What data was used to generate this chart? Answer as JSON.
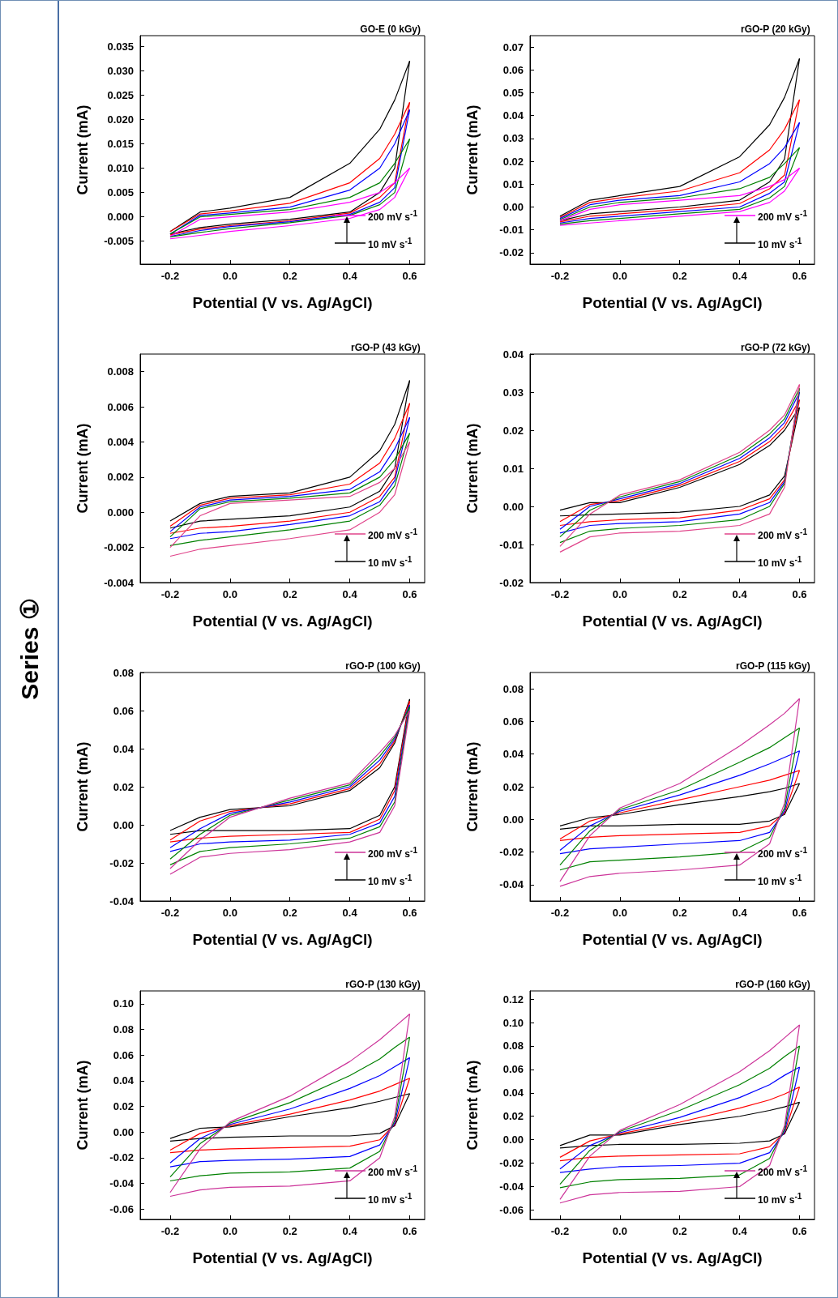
{
  "chart_data": [
    {
      "type": "line",
      "title": "GO-E (0 kGy)",
      "xlabel": "Potential (V vs. Ag/AgCl)",
      "ylabel": "Current (mA)",
      "annotations": [
        "200 mV s$^{-1}$",
        "10 mV s$^{-1}$",
        "Series ①"
      ],
      "marker": "none",
      "line_style": "solid",
      "xlim": [
        -0.3,
        0.65
      ],
      "xticks": [
        {
          "value": -0.2,
          "label": "-0.2"
        },
        {
          "value": 0,
          "label": "0.0"
        },
        {
          "value": 0.2,
          "label": "0.2"
        },
        {
          "value": 0.4,
          "label": "0.4"
        },
        {
          "value": 0.6,
          "label": "0.6"
        }
      ],
      "ylim": [
        -0.0097,
        0.0372
      ],
      "yticks": [
        {
          "value": -0.005,
          "label": "-0.005"
        },
        {
          "value": 0,
          "label": "0.000"
        },
        {
          "value": 0.005,
          "label": "0.005"
        },
        {
          "value": 0.01,
          "label": "0.010"
        },
        {
          "value": 0.015,
          "label": "0.015"
        },
        {
          "value": 0.02,
          "label": "0.020"
        },
        {
          "value": 0.025,
          "label": "0.025"
        },
        {
          "value": 0.03,
          "label": "0.030"
        },
        {
          "value": 0.035,
          "label": "0.035"
        }
      ],
      "x": [
        -0.2,
        -0.1,
        0,
        0.2,
        0.4,
        0.5,
        0.55,
        0.6
      ],
      "series": [
        {
          "color": "#000000",
          "values": [
            -0.003,
            0.001,
            0.0018,
            0.004,
            0.011,
            0.018,
            0.024,
            0.032
          ]
        },
        {
          "color": "#000000",
          "values": [
            -0.0035,
            -0.0022,
            -0.0015,
            -0.0005,
            0.001,
            0.005,
            0.01,
            0.032
          ]
        },
        {
          "color": "#ff0000",
          "values": [
            -0.003,
            0.0006,
            0.0012,
            0.0028,
            0.007,
            0.012,
            0.017,
            0.0235
          ]
        },
        {
          "color": "#ff0000",
          "values": [
            -0.0037,
            -0.0025,
            -0.0018,
            -0.0008,
            0.0008,
            0.004,
            0.007,
            0.0235
          ]
        },
        {
          "color": "#0000ff",
          "values": [
            -0.0035,
            0.0003,
            0.0008,
            0.002,
            0.0055,
            0.01,
            0.015,
            0.022
          ]
        },
        {
          "color": "#0000ff",
          "values": [
            -0.004,
            -0.0028,
            -0.002,
            -0.001,
            0.0005,
            0.003,
            0.006,
            0.022
          ]
        },
        {
          "color": "#008000",
          "values": [
            -0.0035,
            0,
            0.0005,
            0.0015,
            0.004,
            0.007,
            0.011,
            0.016
          ]
        },
        {
          "color": "#008000",
          "values": [
            -0.0041,
            -0.0032,
            -0.0024,
            -0.0012,
            0.0003,
            0.0025,
            0.005,
            0.016
          ]
        },
        {
          "color": "#ff00ff",
          "values": [
            -0.004,
            -0.0005,
            0,
            0.001,
            0.003,
            0.005,
            0.007,
            0.01
          ]
        },
        {
          "color": "#ff00ff",
          "values": [
            -0.0045,
            -0.0038,
            -0.003,
            -0.0018,
            -0.0003,
            0.0015,
            0.004,
            0.01
          ]
        }
      ]
    },
    {
      "type": "line",
      "title": "rGO-P (20 kGy)",
      "xlabel": "Potential (V vs. Ag/AgCl)",
      "ylabel": "Current (mA)",
      "annotations": [
        "200 mV s$^{-1}$",
        "10 mV s$^{-1}$"
      ],
      "marker": "none",
      "line_style": "solid",
      "xlim": [
        -0.3,
        0.65
      ],
      "xticks": [
        {
          "value": -0.2,
          "label": "-0.2"
        },
        {
          "value": 0,
          "label": "0.0"
        },
        {
          "value": 0.2,
          "label": "0.2"
        },
        {
          "value": 0.4,
          "label": "0.4"
        },
        {
          "value": 0.6,
          "label": "0.6"
        }
      ],
      "ylim": [
        -0.025,
        0.075
      ],
      "yticks": [
        {
          "value": -0.02,
          "label": "-0.02"
        },
        {
          "value": -0.01,
          "label": "-0.01"
        },
        {
          "value": 0,
          "label": "0.00"
        },
        {
          "value": 0.01,
          "label": "0.01"
        },
        {
          "value": 0.02,
          "label": "0.02"
        },
        {
          "value": 0.03,
          "label": "0.03"
        },
        {
          "value": 0.04,
          "label": "0.04"
        },
        {
          "value": 0.05,
          "label": "0.05"
        },
        {
          "value": 0.06,
          "label": "0.06"
        },
        {
          "value": 0.07,
          "label": "0.07"
        }
      ],
      "x": [
        -0.2,
        -0.1,
        0,
        0.2,
        0.4,
        0.5,
        0.55,
        0.6
      ],
      "series": [
        {
          "color": "#000000",
          "values": [
            -0.004,
            0.003,
            0.005,
            0.009,
            0.022,
            0.036,
            0.048,
            0.065
          ]
        },
        {
          "color": "#000000",
          "values": [
            -0.006,
            -0.003,
            -0.002,
            0,
            0.003,
            0.011,
            0.021,
            0.065
          ]
        },
        {
          "color": "#ff0000",
          "values": [
            -0.0045,
            0.002,
            0.004,
            0.007,
            0.015,
            0.025,
            0.034,
            0.047
          ]
        },
        {
          "color": "#ff0000",
          "values": [
            -0.0065,
            -0.004,
            -0.003,
            -0.001,
            0.0015,
            0.008,
            0.014,
            0.047
          ]
        },
        {
          "color": "#0000ff",
          "values": [
            -0.005,
            0.001,
            0.003,
            0.005,
            0.011,
            0.019,
            0.026,
            0.037
          ]
        },
        {
          "color": "#0000ff",
          "values": [
            -0.007,
            -0.005,
            -0.004,
            -0.002,
            0,
            0.006,
            0.011,
            0.037
          ]
        },
        {
          "color": "#008000",
          "values": [
            -0.0055,
            0,
            0.002,
            0.004,
            0.008,
            0.013,
            0.019,
            0.026
          ]
        },
        {
          "color": "#008000",
          "values": [
            -0.0075,
            -0.006,
            -0.005,
            -0.003,
            -0.001,
            0.004,
            0.009,
            0.026
          ]
        },
        {
          "color": "#ff00ff",
          "values": [
            -0.006,
            -0.001,
            0.001,
            0.003,
            0.005,
            0.009,
            0.012,
            0.017
          ]
        },
        {
          "color": "#ff00ff",
          "values": [
            -0.008,
            -0.007,
            -0.006,
            -0.004,
            -0.002,
            0.002,
            0.007,
            0.017
          ]
        }
      ]
    },
    {
      "type": "line",
      "title": "rGO-P (43 kGy)",
      "xlabel": "Potential (V vs. Ag/AgCl)",
      "ylabel": "Current (mA)",
      "annotations": [
        "200 mV s$^{-1}$",
        "10 mV s$^{-1}$"
      ],
      "marker": "none",
      "line_style": "solid",
      "xlim": [
        -0.3,
        0.65
      ],
      "xticks": [
        {
          "value": -0.2,
          "label": "-0.2"
        },
        {
          "value": 0,
          "label": "0.0"
        },
        {
          "value": 0.2,
          "label": "0.2"
        },
        {
          "value": 0.4,
          "label": "0.4"
        },
        {
          "value": 0.6,
          "label": "0.6"
        }
      ],
      "ylim": [
        -0.004,
        0.009
      ],
      "yticks": [
        {
          "value": -0.004,
          "label": "-0.004"
        },
        {
          "value": -0.002,
          "label": "-0.002"
        },
        {
          "value": 0,
          "label": "0.000"
        },
        {
          "value": 0.002,
          "label": "0.002"
        },
        {
          "value": 0.004,
          "label": "0.004"
        },
        {
          "value": 0.006,
          "label": "0.006"
        },
        {
          "value": 0.008,
          "label": "0.008"
        }
      ],
      "x": [
        -0.2,
        -0.1,
        0,
        0.2,
        0.4,
        0.5,
        0.55,
        0.6
      ],
      "series": [
        {
          "color": "#000000",
          "values": [
            -0.0005,
            0.0005,
            0.0009,
            0.0011,
            0.002,
            0.0035,
            0.005,
            0.0075
          ]
        },
        {
          "color": "#000000",
          "values": [
            -0.0009,
            -0.0005,
            -0.0004,
            -0.0002,
            0.0003,
            0.0012,
            0.0025,
            0.0075
          ]
        },
        {
          "color": "#ff0000",
          "values": [
            -0.0008,
            0.0004,
            0.0008,
            0.001,
            0.0016,
            0.0028,
            0.0042,
            0.0062
          ]
        },
        {
          "color": "#ff0000",
          "values": [
            -0.0012,
            -0.0009,
            -0.0008,
            -0.0005,
            0,
            0.0009,
            0.002,
            0.0062
          ]
        },
        {
          "color": "#0000ff",
          "values": [
            -0.0011,
            0.0003,
            0.0007,
            0.0009,
            0.0013,
            0.0023,
            0.0036,
            0.0054
          ]
        },
        {
          "color": "#0000ff",
          "values": [
            -0.0015,
            -0.0012,
            -0.0011,
            -0.0007,
            -0.0002,
            0.0006,
            0.0018,
            0.0054
          ]
        },
        {
          "color": "#008000",
          "values": [
            -0.0014,
            0.0002,
            0.0006,
            0.0008,
            0.0011,
            0.002,
            0.003,
            0.0045
          ]
        },
        {
          "color": "#008000",
          "values": [
            -0.0019,
            -0.0016,
            -0.0014,
            -0.001,
            -0.0005,
            0.0004,
            0.0015,
            0.0045
          ]
        },
        {
          "color": "#e0448a",
          "values": [
            -0.002,
            -0.0002,
            0.0005,
            0.0007,
            0.0009,
            0.0017,
            0.0025,
            0.004
          ]
        },
        {
          "color": "#e0448a",
          "values": [
            -0.0025,
            -0.0021,
            -0.0019,
            -0.0015,
            -0.001,
            0,
            0.001,
            0.004
          ]
        }
      ]
    },
    {
      "type": "line",
      "title": "rGO-P (72 kGy)",
      "xlabel": "Potential (V vs. Ag/AgCl)",
      "ylabel": "Current (mA)",
      "annotations": [
        "200 mV s$^{-1}$",
        "10 mV s$^{-1}$"
      ],
      "marker": "none",
      "line_style": "solid",
      "xlim": [
        -0.3,
        0.65
      ],
      "xticks": [
        {
          "value": -0.2,
          "label": "-0.2"
        },
        {
          "value": 0,
          "label": "0.0"
        },
        {
          "value": 0.2,
          "label": "0.2"
        },
        {
          "value": 0.4,
          "label": "0.4"
        },
        {
          "value": 0.6,
          "label": "0.6"
        }
      ],
      "ylim": [
        -0.02,
        0.04
      ],
      "yticks": [
        {
          "value": -0.02,
          "label": "-0.02"
        },
        {
          "value": -0.01,
          "label": "-0.01"
        },
        {
          "value": 0,
          "label": "0.00"
        },
        {
          "value": 0.01,
          "label": "0.01"
        },
        {
          "value": 0.02,
          "label": "0.02"
        },
        {
          "value": 0.03,
          "label": "0.03"
        },
        {
          "value": 0.04,
          "label": "0.04"
        }
      ],
      "x": [
        -0.2,
        -0.1,
        0,
        0.2,
        0.4,
        0.5,
        0.55,
        0.6
      ],
      "series": [
        {
          "color": "#000000",
          "values": [
            -0.001,
            0.001,
            0.001,
            0.005,
            0.011,
            0.016,
            0.02,
            0.026
          ]
        },
        {
          "color": "#000000",
          "values": [
            -0.0025,
            -0.0022,
            -0.002,
            -0.0015,
            0,
            0.003,
            0.008,
            0.026
          ]
        },
        {
          "color": "#ff0000",
          "values": [
            -0.004,
            0.0005,
            0.0015,
            0.0055,
            0.0118,
            0.017,
            0.021,
            0.028
          ]
        },
        {
          "color": "#ff0000",
          "values": [
            -0.005,
            -0.004,
            -0.0035,
            -0.003,
            -0.001,
            0.002,
            0.007,
            0.028
          ]
        },
        {
          "color": "#0000ff",
          "values": [
            -0.006,
            0,
            0.002,
            0.006,
            0.0126,
            0.018,
            0.022,
            0.03
          ]
        },
        {
          "color": "#0000ff",
          "values": [
            -0.007,
            -0.005,
            -0.0045,
            -0.004,
            -0.002,
            0.001,
            0.0065,
            0.03
          ]
        },
        {
          "color": "#008000",
          "values": [
            -0.008,
            -0.001,
            0.0025,
            0.0065,
            0.0134,
            0.019,
            0.023,
            0.031
          ]
        },
        {
          "color": "#008000",
          "values": [
            -0.0095,
            -0.0065,
            -0.0058,
            -0.005,
            -0.0035,
            0,
            0.006,
            0.031
          ]
        },
        {
          "color": "#e0448a",
          "values": [
            -0.0105,
            -0.002,
            0.003,
            0.007,
            0.0142,
            0.02,
            0.024,
            0.032
          ]
        },
        {
          "color": "#e0448a",
          "values": [
            -0.012,
            -0.008,
            -0.007,
            -0.0065,
            -0.005,
            -0.002,
            0.005,
            0.032
          ]
        }
      ]
    },
    {
      "type": "line",
      "title": "rGO-P (100 kGy)",
      "xlabel": "Potential (V vs. Ag/AgCl)",
      "ylabel": "Current (mA)",
      "annotations": [
        "200 mV s$^{-1}$",
        "10 mV s$^{-1}$"
      ],
      "marker": "none",
      "line_style": "solid",
      "xlim": [
        -0.3,
        0.65
      ],
      "xticks": [
        {
          "value": -0.2,
          "label": "-0.2"
        },
        {
          "value": 0,
          "label": "0.0"
        },
        {
          "value": 0.2,
          "label": "0.2"
        },
        {
          "value": 0.4,
          "label": "0.4"
        },
        {
          "value": 0.6,
          "label": "0.6"
        }
      ],
      "ylim": [
        -0.04,
        0.08
      ],
      "yticks": [
        {
          "value": -0.04,
          "label": "-0.04"
        },
        {
          "value": -0.02,
          "label": "-0.02"
        },
        {
          "value": 0,
          "label": "0.00"
        },
        {
          "value": 0.02,
          "label": "0.02"
        },
        {
          "value": 0.04,
          "label": "0.04"
        },
        {
          "value": 0.06,
          "label": "0.06"
        },
        {
          "value": 0.08,
          "label": "0.08"
        }
      ],
      "x": [
        -0.2,
        -0.1,
        0,
        0.2,
        0.4,
        0.5,
        0.55,
        0.6
      ],
      "series": [
        {
          "color": "#000000",
          "values": [
            -0.003,
            0.004,
            0.008,
            0.01,
            0.018,
            0.03,
            0.043,
            0.066
          ]
        },
        {
          "color": "#000000",
          "values": [
            -0.005,
            -0.003,
            -0.003,
            -0.003,
            -0.002,
            0.005,
            0.02,
            0.066
          ]
        },
        {
          "color": "#ff0000",
          "values": [
            -0.008,
            0.002,
            0.007,
            0.011,
            0.019,
            0.032,
            0.044,
            0.065
          ]
        },
        {
          "color": "#ff0000",
          "values": [
            -0.009,
            -0.007,
            -0.006,
            -0.005,
            -0.004,
            0.003,
            0.018,
            0.065
          ]
        },
        {
          "color": "#0000ff",
          "values": [
            -0.012,
            -0.002,
            0.006,
            0.012,
            0.02,
            0.034,
            0.045,
            0.063
          ]
        },
        {
          "color": "#0000ff",
          "values": [
            -0.014,
            -0.01,
            -0.009,
            -0.008,
            -0.005,
            0.001,
            0.015,
            0.063
          ]
        },
        {
          "color": "#008000",
          "values": [
            -0.018,
            -0.005,
            0.005,
            0.013,
            0.021,
            0.036,
            0.046,
            0.062
          ]
        },
        {
          "color": "#008000",
          "values": [
            -0.021,
            -0.014,
            -0.012,
            -0.01,
            -0.007,
            -0.001,
            0.012,
            0.062
          ]
        },
        {
          "color": "#cc3399",
          "values": [
            -0.023,
            -0.008,
            0.004,
            0.014,
            0.022,
            0.038,
            0.047,
            0.06
          ]
        },
        {
          "color": "#cc3399",
          "values": [
            -0.026,
            -0.017,
            -0.015,
            -0.013,
            -0.009,
            -0.004,
            0.01,
            0.06
          ]
        }
      ]
    },
    {
      "type": "line",
      "title": "rGO-P (115 kGy)",
      "xlabel": "Potential (V vs. Ag/AgCl)",
      "ylabel": "Current (mA)",
      "annotations": [
        "200 mV s$^{-1}$",
        "10 mV s$^{-1}$"
      ],
      "marker": "none",
      "line_style": "solid",
      "xlim": [
        -0.3,
        0.65
      ],
      "xticks": [
        {
          "value": -0.2,
          "label": "-0.2"
        },
        {
          "value": 0,
          "label": "0.0"
        },
        {
          "value": 0.2,
          "label": "0.2"
        },
        {
          "value": 0.4,
          "label": "0.4"
        },
        {
          "value": 0.6,
          "label": "0.6"
        }
      ],
      "ylim": [
        -0.05,
        0.09
      ],
      "yticks": [
        {
          "value": -0.04,
          "label": "-0.04"
        },
        {
          "value": -0.02,
          "label": "-0.02"
        },
        {
          "value": 0,
          "label": "0.00"
        },
        {
          "value": 0.02,
          "label": "0.02"
        },
        {
          "value": 0.04,
          "label": "0.04"
        },
        {
          "value": 0.06,
          "label": "0.06"
        },
        {
          "value": 0.08,
          "label": "0.08"
        }
      ],
      "x": [
        -0.2,
        -0.1,
        0,
        0.2,
        0.4,
        0.5,
        0.55,
        0.6
      ],
      "series": [
        {
          "color": "#000000",
          "values": [
            -0.004,
            0.001,
            0.003,
            0.009,
            0.014,
            0.017,
            0.019,
            0.022
          ]
        },
        {
          "color": "#000000",
          "values": [
            -0.006,
            -0.004,
            -0.004,
            -0.003,
            -0.003,
            -0.001,
            0.003,
            0.022
          ]
        },
        {
          "color": "#ff0000",
          "values": [
            -0.012,
            -0.001,
            0.004,
            0.012,
            0.02,
            0.024,
            0.027,
            0.03
          ]
        },
        {
          "color": "#ff0000",
          "values": [
            -0.013,
            -0.011,
            -0.01,
            -0.009,
            -0.008,
            -0.004,
            0.004,
            0.03
          ]
        },
        {
          "color": "#0000ff",
          "values": [
            -0.019,
            -0.004,
            0.005,
            0.015,
            0.027,
            0.034,
            0.038,
            0.042
          ]
        },
        {
          "color": "#0000ff",
          "values": [
            -0.021,
            -0.018,
            -0.017,
            -0.015,
            -0.013,
            -0.008,
            0.005,
            0.042
          ]
        },
        {
          "color": "#008000",
          "values": [
            -0.028,
            -0.007,
            0.006,
            0.018,
            0.035,
            0.044,
            0.05,
            0.056
          ]
        },
        {
          "color": "#008000",
          "values": [
            -0.031,
            -0.026,
            -0.025,
            -0.023,
            -0.02,
            -0.011,
            0.007,
            0.056
          ]
        },
        {
          "color": "#cc3399",
          "values": [
            -0.038,
            -0.01,
            0.007,
            0.022,
            0.045,
            0.058,
            0.065,
            0.074
          ]
        },
        {
          "color": "#cc3399",
          "values": [
            -0.041,
            -0.035,
            -0.033,
            -0.031,
            -0.028,
            -0.015,
            0.01,
            0.074
          ]
        }
      ]
    },
    {
      "type": "line",
      "title": "rGO-P (130 kGy)",
      "xlabel": "Potential (V vs. Ag/AgCl)",
      "ylabel": "Current (mA)",
      "annotations": [
        "200 mV s$^{-1}$",
        "10 mV s$^{-1}$"
      ],
      "marker": "none",
      "line_style": "solid",
      "xlim": [
        -0.3,
        0.65
      ],
      "xticks": [
        {
          "value": -0.2,
          "label": "-0.2"
        },
        {
          "value": 0,
          "label": "0.0"
        },
        {
          "value": 0.2,
          "label": "0.2"
        },
        {
          "value": 0.4,
          "label": "0.4"
        },
        {
          "value": 0.6,
          "label": "0.6"
        }
      ],
      "ylim": [
        -0.068,
        0.11
      ],
      "yticks": [
        {
          "value": -0.06,
          "label": "-0.06"
        },
        {
          "value": -0.04,
          "label": "-0.04"
        },
        {
          "value": -0.02,
          "label": "-0.02"
        },
        {
          "value": 0,
          "label": "0.00"
        },
        {
          "value": 0.02,
          "label": "0.02"
        },
        {
          "value": 0.04,
          "label": "0.04"
        },
        {
          "value": 0.06,
          "label": "0.06"
        },
        {
          "value": 0.08,
          "label": "0.08"
        },
        {
          "value": 0.1,
          "label": "0.10"
        }
      ],
      "x": [
        -0.2,
        -0.1,
        0,
        0.2,
        0.4,
        0.5,
        0.55,
        0.6
      ],
      "series": [
        {
          "color": "#000000",
          "values": [
            -0.005,
            0.003,
            0.004,
            0.012,
            0.019,
            0.024,
            0.027,
            0.03
          ]
        },
        {
          "color": "#000000",
          "values": [
            -0.007,
            -0.005,
            -0.004,
            -0.003,
            -0.003,
            -0.001,
            0.005,
            0.03
          ]
        },
        {
          "color": "#ff0000",
          "values": [
            -0.014,
            -0.001,
            0.005,
            0.014,
            0.025,
            0.032,
            0.037,
            0.042
          ]
        },
        {
          "color": "#ff0000",
          "values": [
            -0.016,
            -0.014,
            -0.013,
            -0.012,
            -0.011,
            -0.006,
            0.006,
            0.042
          ]
        },
        {
          "color": "#0000ff",
          "values": [
            -0.024,
            -0.005,
            0.006,
            0.018,
            0.034,
            0.044,
            0.051,
            0.058
          ]
        },
        {
          "color": "#0000ff",
          "values": [
            -0.027,
            -0.023,
            -0.022,
            -0.021,
            -0.019,
            -0.01,
            0.007,
            0.058
          ]
        },
        {
          "color": "#008000",
          "values": [
            -0.035,
            -0.009,
            0.007,
            0.023,
            0.044,
            0.057,
            0.066,
            0.074
          ]
        },
        {
          "color": "#008000",
          "values": [
            -0.038,
            -0.034,
            -0.032,
            -0.031,
            -0.028,
            -0.015,
            0.009,
            0.074
          ]
        },
        {
          "color": "#cc3399",
          "values": [
            -0.047,
            -0.013,
            0.008,
            0.028,
            0.055,
            0.072,
            0.082,
            0.092
          ]
        },
        {
          "color": "#cc3399",
          "values": [
            -0.05,
            -0.045,
            -0.043,
            -0.042,
            -0.038,
            -0.02,
            0.012,
            0.092
          ]
        }
      ]
    },
    {
      "type": "line",
      "title": "rGO-P (160 kGy)",
      "xlabel": "Potential (V vs. Ag/AgCl)",
      "ylabel": "Current (mA)",
      "annotations": [
        "200 mV s$^{-1}$",
        "10 mV s$^{-1}$"
      ],
      "marker": "none",
      "line_style": "solid",
      "xlim": [
        -0.3,
        0.65
      ],
      "xticks": [
        {
          "value": -0.2,
          "label": "-0.2"
        },
        {
          "value": 0,
          "label": "0.0"
        },
        {
          "value": 0.2,
          "label": "0.2"
        },
        {
          "value": 0.4,
          "label": "0.4"
        },
        {
          "value": 0.6,
          "label": "0.6"
        }
      ],
      "ylim": [
        -0.068,
        0.127
      ],
      "yticks": [
        {
          "value": -0.06,
          "label": "-0.06"
        },
        {
          "value": -0.04,
          "label": "-0.04"
        },
        {
          "value": -0.02,
          "label": "-0.02"
        },
        {
          "value": 0,
          "label": "0.00"
        },
        {
          "value": 0.02,
          "label": "0.02"
        },
        {
          "value": 0.04,
          "label": "0.04"
        },
        {
          "value": 0.06,
          "label": "0.06"
        },
        {
          "value": 0.08,
          "label": "0.08"
        },
        {
          "value": 0.1,
          "label": "0.10"
        },
        {
          "value": 0.12,
          "label": "0.12"
        }
      ],
      "x": [
        -0.2,
        -0.1,
        0,
        0.2,
        0.4,
        0.5,
        0.55,
        0.6
      ],
      "series": [
        {
          "color": "#000000",
          "values": [
            -0.005,
            0.004,
            0.004,
            0.013,
            0.02,
            0.025,
            0.028,
            0.032
          ]
        },
        {
          "color": "#000000",
          "values": [
            -0.007,
            -0.005,
            -0.004,
            -0.004,
            -0.003,
            -0.001,
            0.005,
            0.032
          ]
        },
        {
          "color": "#ff0000",
          "values": [
            -0.015,
            -0.001,
            0.005,
            0.015,
            0.027,
            0.034,
            0.039,
            0.045
          ]
        },
        {
          "color": "#ff0000",
          "values": [
            -0.018,
            -0.015,
            -0.014,
            -0.013,
            -0.012,
            -0.006,
            0.006,
            0.045
          ]
        },
        {
          "color": "#0000ff",
          "values": [
            -0.025,
            -0.005,
            0.006,
            0.019,
            0.036,
            0.047,
            0.055,
            0.062
          ]
        },
        {
          "color": "#0000ff",
          "values": [
            -0.028,
            -0.025,
            -0.023,
            -0.022,
            -0.02,
            -0.011,
            0.007,
            0.062
          ]
        },
        {
          "color": "#008000",
          "values": [
            -0.038,
            -0.009,
            0.007,
            0.025,
            0.047,
            0.061,
            0.071,
            0.08
          ]
        },
        {
          "color": "#008000",
          "values": [
            -0.041,
            -0.036,
            -0.034,
            -0.033,
            -0.03,
            -0.016,
            0.009,
            0.08
          ]
        },
        {
          "color": "#cc3399",
          "values": [
            -0.051,
            -0.014,
            0.008,
            0.03,
            0.058,
            0.076,
            0.087,
            0.098
          ]
        },
        {
          "color": "#cc3399",
          "values": [
            -0.054,
            -0.047,
            -0.045,
            -0.044,
            -0.04,
            -0.022,
            0.012,
            0.098
          ]
        }
      ]
    }
  ]
}
